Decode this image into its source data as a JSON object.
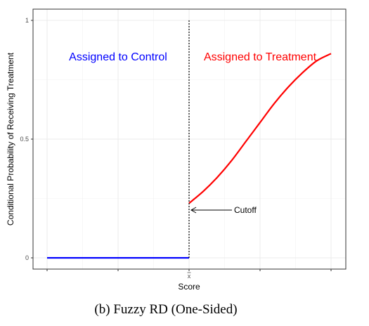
{
  "chart_data": {
    "type": "line",
    "title": "",
    "xlabel": "Score",
    "ylabel": "Conditional Probability of Receiving Treatment",
    "ylim": [
      0,
      1
    ],
    "xlim": [
      -1,
      1
    ],
    "yticks": [
      0,
      0.5,
      1
    ],
    "ytick_labels": [
      "0",
      "0.5",
      "1"
    ],
    "xticks": [
      -1,
      -0.5,
      0,
      0.5,
      1
    ],
    "xtick_labels": [
      "",
      "",
      "x",
      "",
      ""
    ],
    "grid": true,
    "cutoff_x": 0,
    "series": [
      {
        "color": "#0000ff",
        "x": [
          -1,
          0
        ],
        "y": [
          0,
          0
        ]
      },
      {
        "color": "#ff0000",
        "x": [
          0,
          0.1,
          0.2,
          0.3,
          0.4,
          0.5,
          0.6,
          0.7,
          0.8,
          0.9,
          1.0
        ],
        "y": [
          0.23,
          0.28,
          0.34,
          0.41,
          0.49,
          0.57,
          0.65,
          0.72,
          0.78,
          0.83,
          0.86
        ]
      }
    ],
    "annotations": [
      {
        "text": "Assigned to Control",
        "color": "#0000ff"
      },
      {
        "text": "Assigned to Treatment",
        "color": "#ff0000"
      },
      {
        "text": "Cutoff",
        "color": "#000000"
      }
    ]
  },
  "caption": "(b) Fuzzy RD (One-Sided)"
}
